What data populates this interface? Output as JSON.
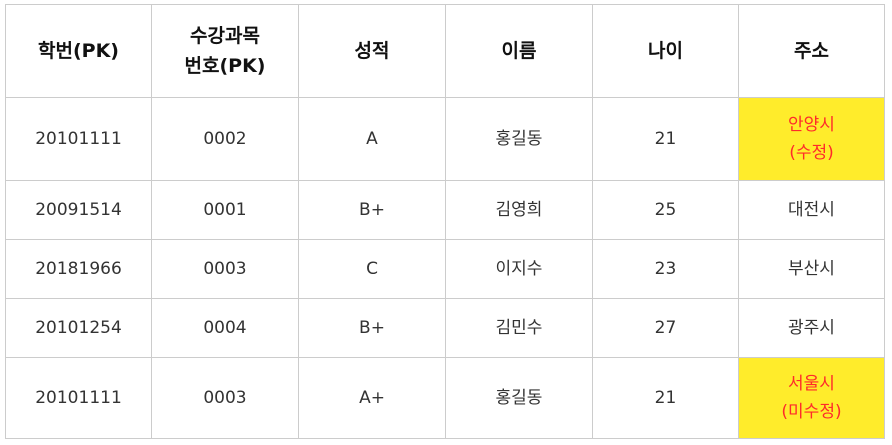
{
  "table": {
    "headers": [
      [
        "학번(PK)"
      ],
      [
        "수강과목",
        "번호(PK)"
      ],
      [
        "성적"
      ],
      [
        "이름"
      ],
      [
        "나이"
      ],
      [
        "주소"
      ]
    ],
    "rows": [
      {
        "student_id": "20101111",
        "course_no": "0002",
        "grade": "A",
        "name": "홍길동",
        "age": "21",
        "address": [
          "안양시",
          "(수정)"
        ]
      },
      {
        "student_id": "20091514",
        "course_no": "0001",
        "grade": "B+",
        "name": "김영희",
        "age": "25",
        "address": [
          "대전시"
        ]
      },
      {
        "student_id": "20181966",
        "course_no": "0003",
        "grade": "C",
        "name": "이지수",
        "age": "23",
        "address": [
          "부산시"
        ]
      },
      {
        "student_id": "20101254",
        "course_no": "0004",
        "grade": "B+",
        "name": "김민수",
        "age": "27",
        "address": [
          "광주시"
        ]
      },
      {
        "student_id": "20101111",
        "course_no": "0003",
        "grade": "A+",
        "name": "홍길동",
        "age": "21",
        "address": [
          "서울시",
          "(미수정)"
        ]
      }
    ],
    "colors": {
      "highlight_bg": "#ffec2b",
      "highlight_text": "#ff2a2a",
      "border": "#cccccc"
    }
  }
}
